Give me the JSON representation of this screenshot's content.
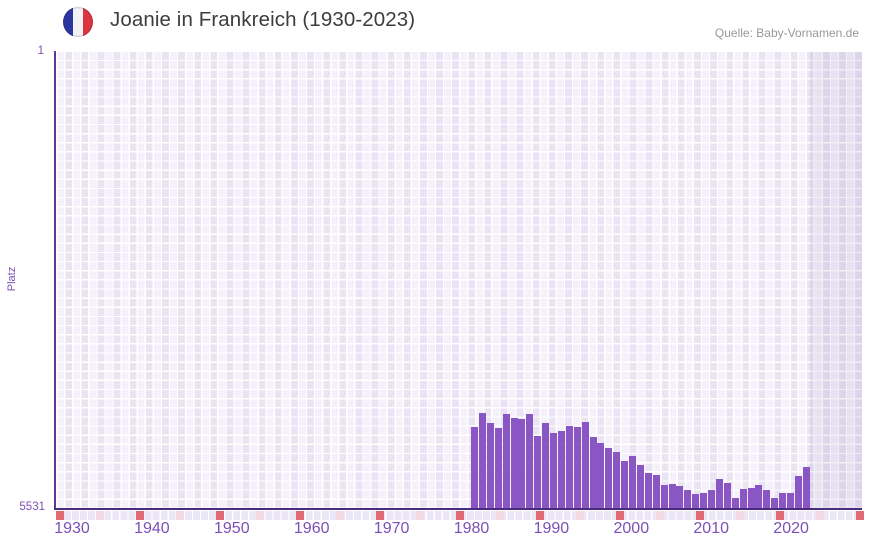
{
  "header": {
    "flag_icon": "france-flag-icon"
  },
  "colors": {
    "bar": "#8a56c4",
    "x_axis_line": "#4a2b80",
    "y_axis_line": "#58379e",
    "axis_labels": "#7c4fb5",
    "title_text": "#3d3d3d",
    "source_text": "#96989a",
    "tick_red": "#e26a74",
    "tick_pink": "#f5d9e2",
    "flag_blue": "#2b35a0",
    "flag_white": "#f2f1f3",
    "flag_red": "#dc3440"
  },
  "chart_data": {
    "type": "bar",
    "title": "Joanie in Frankreich (1930-2023)",
    "source": "Quelle: Baby-Vornamen.de",
    "ylabel": "Platz",
    "grid": true,
    "legend": false,
    "y_axis": {
      "top_label": "1",
      "bottom_label": "5531",
      "min": 1,
      "max": 5531,
      "inverted": true
    },
    "x_axis": {
      "start": 1930,
      "end": 2023,
      "tick_labels": [
        "1930",
        "1940",
        "1950",
        "1960",
        "1970",
        "1980",
        "1990",
        "2000",
        "2010",
        "2020"
      ]
    },
    "no_data_after": 2022,
    "series": [
      {
        "name": "Platz",
        "years": [
          1980,
          1981,
          1982,
          1983,
          1984,
          1985,
          1986,
          1987,
          1988,
          1989,
          1990,
          1991,
          1992,
          1993,
          1994,
          1995,
          1996,
          1997,
          1998,
          1999,
          2000,
          2001,
          2002,
          2003,
          2004,
          2005,
          2006,
          2007,
          2008,
          2009,
          2010,
          2011,
          2012,
          2013,
          2014,
          2015,
          2016,
          2017,
          2018,
          2019,
          2020,
          2021,
          2022
        ],
        "ranks": [
          4540,
          4370,
          4500,
          4560,
          4390,
          4430,
          4450,
          4390,
          4650,
          4490,
          4610,
          4590,
          4530,
          4540,
          4480,
          4670,
          4740,
          4800,
          4850,
          4950,
          4900,
          5000,
          5100,
          5130,
          5250,
          5230,
          5260,
          5310,
          5360,
          5340,
          5310,
          5170,
          5220,
          5400,
          5300,
          5280,
          5250,
          5310,
          5400,
          5340,
          5340,
          5140,
          5030
        ]
      }
    ]
  }
}
